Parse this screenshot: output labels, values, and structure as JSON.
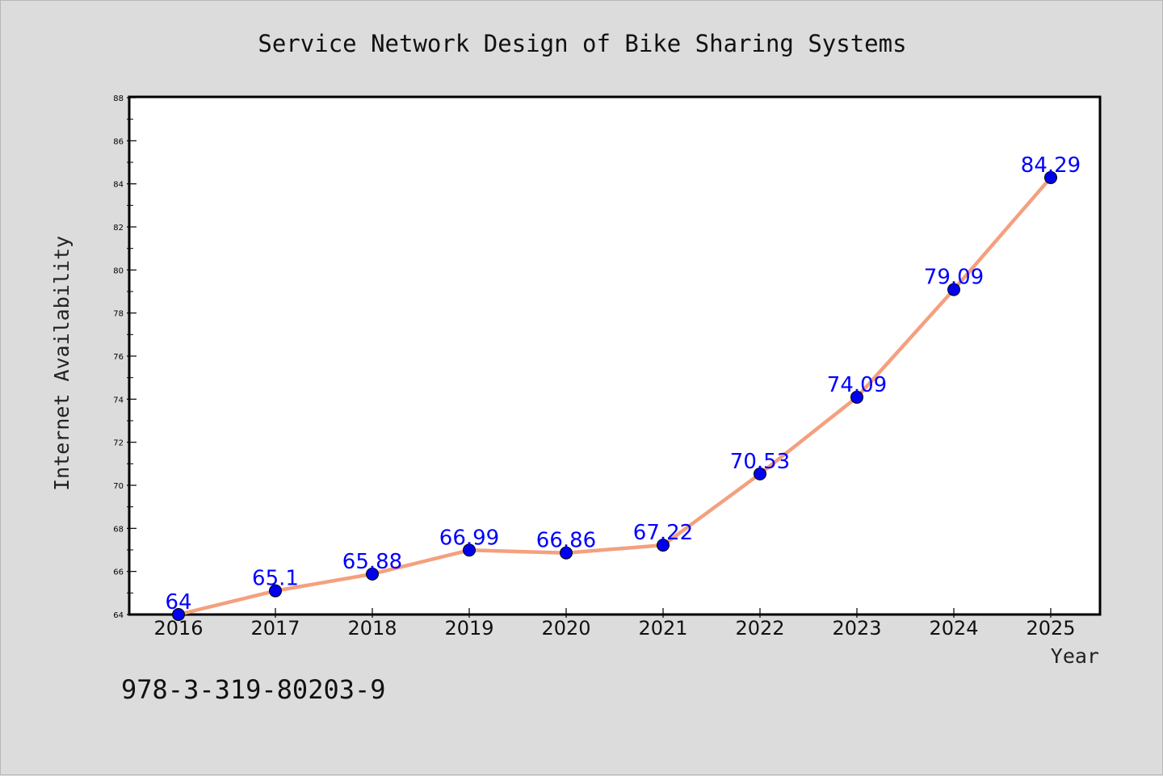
{
  "chart_data": {
    "type": "line",
    "title": "Service Network Design of Bike Sharing Systems",
    "xlabel": "Year",
    "ylabel": "Internet Availability",
    "categories": [
      "2016",
      "2017",
      "2018",
      "2019",
      "2020",
      "2021",
      "2022",
      "2023",
      "2024",
      "2025"
    ],
    "series": [
      {
        "values": [
          64,
          65.1,
          65.88,
          66.99,
          66.86,
          67.22,
          70.53,
          74.09,
          79.09,
          84.29
        ],
        "labels": [
          "64",
          "65.1",
          "65.88",
          "66.99",
          "66.86",
          "67.22",
          "70.53",
          "74.09",
          "79.09",
          "84.29"
        ],
        "line_color": "#f4a07e",
        "marker_color": "#0000ee",
        "label_color": "#0000ff"
      }
    ],
    "ylim": [
      64,
      88
    ],
    "yticks": [
      64,
      66,
      68,
      70,
      72,
      74,
      76,
      78,
      80,
      82,
      84,
      86,
      88
    ],
    "grid": false,
    "legend": "none"
  },
  "footer_text": "978-3-319-80203-9",
  "colors": {
    "background": "#dcdcdc",
    "plot_background": "#ffffff"
  }
}
